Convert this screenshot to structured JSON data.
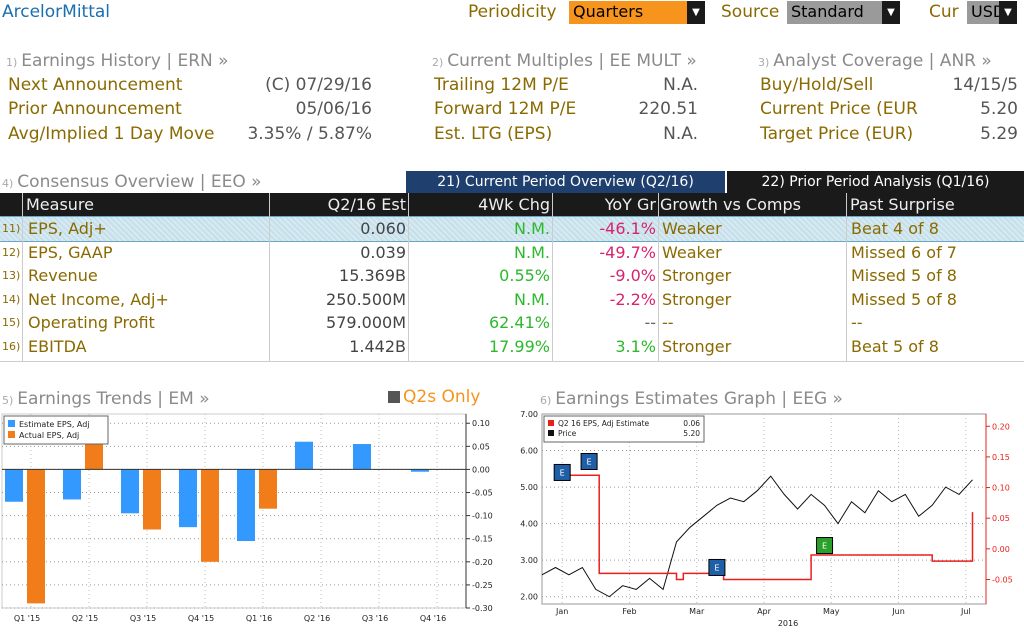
{
  "header": {
    "company": "ArcelorMittal",
    "periodicity_label": "Periodicity",
    "periodicity_value": "Quarters",
    "source_label": "Source",
    "source_value": "Standard",
    "cur_label": "Cur",
    "cur_value": "USD"
  },
  "earnings_history": {
    "num": "1)",
    "title": "Earnings History | ERN »",
    "rows": [
      {
        "label": "Next Announcement",
        "value": "(C)  07/29/16"
      },
      {
        "label": "Prior Announcement",
        "value": "05/06/16"
      },
      {
        "label": "Avg/Implied 1 Day Move",
        "value": "3.35% / 5.87%"
      }
    ]
  },
  "current_multiples": {
    "num": "2)",
    "title": "Current Multiples | EE MULT »",
    "rows": [
      {
        "label": "Trailing 12M P/E",
        "value": "N.A."
      },
      {
        "label": "Forward 12M P/E",
        "value": "220.51"
      },
      {
        "label": "Est. LTG (EPS)",
        "value": "N.A."
      }
    ]
  },
  "analyst_coverage": {
    "num": "3)",
    "title": "Analyst Coverage | ANR »",
    "rows": [
      {
        "label": "Buy/Hold/Sell",
        "value": "14/15/5"
      },
      {
        "label": "Current Price (EUR",
        "value": "5.20"
      },
      {
        "label": "Target Price (EUR)",
        "value": "5.29"
      }
    ]
  },
  "consensus": {
    "num": "4)",
    "title": "Consensus Overview | EEO »",
    "tab_current": "21) Current Period Overview (Q2/16)",
    "tab_prior": "22) Prior Period Analysis (Q1/16)",
    "columns": [
      "Measure",
      "Q2/16 Est",
      "4Wk Chg",
      "YoY Gr",
      "Growth vs Comps",
      "Past Surprise"
    ],
    "rows": [
      {
        "num": "11)",
        "measure": "EPS, Adj+",
        "est": "0.060",
        "wk": "N.M.",
        "yoy": "-46.1%",
        "growth": "Weaker",
        "surprise": "Beat 4 of 8"
      },
      {
        "num": "12)",
        "measure": "EPS, GAAP",
        "est": "0.039",
        "wk": "N.M.",
        "yoy": "-49.7%",
        "growth": "Weaker",
        "surprise": "Missed 6 of 7"
      },
      {
        "num": "13)",
        "measure": "Revenue",
        "est": "15.369B",
        "wk": "0.55%",
        "yoy": "-9.0%",
        "growth": "Stronger",
        "surprise": "Missed 5 of 8"
      },
      {
        "num": "14)",
        "measure": "Net Income, Adj+",
        "est": "250.500M",
        "wk": "N.M.",
        "yoy": "-2.2%",
        "growth": "Stronger",
        "surprise": "Missed 5 of 8"
      },
      {
        "num": "15)",
        "measure": "Operating Profit",
        "est": "579.000M",
        "wk": "62.41%",
        "yoy": "--",
        "growth": "--",
        "surprise": "--"
      },
      {
        "num": "16)",
        "measure": "EBITDA",
        "est": "1.442B",
        "wk": "17.99%",
        "yoy": "3.1%",
        "growth": "Stronger",
        "surprise": "Beat 5 of 8"
      }
    ]
  },
  "earnings_trends": {
    "num": "5)",
    "title": "Earnings Trends | EM »",
    "toggle_label": "Q2s Only"
  },
  "estimates_graph": {
    "num": "6)",
    "title": "Earnings Estimates Graph | EEG »"
  },
  "colors": {
    "estimate": "#3399ff",
    "actual": "#f07d1a",
    "eps_line": "#e8201c",
    "price_line": "#111111",
    "positive": "#2db82d",
    "negative": "#d6246e"
  },
  "chart_data": [
    {
      "type": "bar",
      "categories": [
        "Q1 '15",
        "Q2 '15",
        "Q3 '15",
        "Q4 '15",
        "Q1 '16",
        "Q2 '16",
        "Q3 '16",
        "Q4 '16"
      ],
      "series": [
        {
          "name": "Estimate EPS, Adj",
          "values": [
            -0.07,
            -0.065,
            -0.095,
            -0.125,
            -0.155,
            0.06,
            0.055,
            -0.005
          ]
        },
        {
          "name": "Actual EPS, Adj",
          "values": [
            -0.29,
            0.085,
            -0.13,
            -0.2,
            -0.085,
            null,
            null,
            null
          ]
        }
      ],
      "ylim": [
        -0.3,
        0.12
      ],
      "yticks": [
        0.1,
        0.05,
        0.0,
        -0.05,
        -0.1,
        -0.15,
        -0.2,
        -0.25,
        -0.3
      ],
      "ytick_labels": [
        "0.10",
        "0.05",
        "0.00",
        "-0.05",
        "-0.10",
        "-0.15",
        "-0.20",
        "-0.25",
        "-0.30"
      ],
      "grid": true,
      "legend": "top-left"
    },
    {
      "type": "line",
      "x_labels": [
        "Jan",
        "Feb",
        "Mar",
        "Apr",
        "May",
        "Jun",
        "Jul"
      ],
      "x_sublabel": "2016",
      "legend": "top-left",
      "series": [
        {
          "name": "Price",
          "legend_label": "Price",
          "legend_value": "5.20",
          "axis": "left",
          "x": [
            0,
            0.2,
            0.4,
            0.6,
            0.8,
            1.0,
            1.2,
            1.4,
            1.6,
            1.8,
            2.0,
            2.2,
            2.4,
            2.6,
            2.8,
            3.0,
            3.2,
            3.4,
            3.6,
            3.8,
            4.0,
            4.2,
            4.4,
            4.6,
            4.8,
            5.0,
            5.2,
            5.4,
            5.6,
            5.8,
            6.0,
            6.2,
            6.4
          ],
          "y": [
            2.6,
            2.8,
            2.6,
            2.8,
            2.2,
            2.0,
            2.3,
            2.2,
            2.5,
            2.2,
            3.5,
            3.9,
            4.2,
            4.5,
            4.7,
            4.6,
            4.9,
            5.3,
            4.8,
            4.4,
            4.8,
            4.5,
            4.0,
            4.6,
            4.3,
            4.9,
            4.6,
            4.8,
            4.2,
            4.5,
            5.0,
            4.8,
            5.2
          ]
        },
        {
          "name": "Q2 16 EPS, Adj Estimate",
          "legend_label": "Q2 16 EPS, Adj Estimate",
          "legend_value": "0.06",
          "axis": "right",
          "x": [
            0.3,
            0.8,
            0.85,
            1.5,
            2.0,
            2.1,
            2.6,
            2.7,
            3.2,
            4.0,
            4.5,
            5.8,
            6.3,
            6.4
          ],
          "y": [
            0.12,
            0.12,
            -0.04,
            -0.04,
            -0.05,
            -0.04,
            -0.04,
            -0.05,
            -0.05,
            -0.01,
            -0.01,
            -0.02,
            -0.02,
            0.06
          ]
        }
      ],
      "ylim_left": [
        1.8,
        7.0
      ],
      "yticks_left": [
        "2.00",
        "3.00",
        "4.00",
        "5.00",
        "6.00",
        "7.00"
      ],
      "ylim_right": [
        -0.09,
        0.22
      ],
      "yticks_right": [
        "0.20",
        "0.15",
        "0.10",
        "0.05",
        "0.00",
        "-0.05"
      ],
      "markers": [
        "E",
        "E",
        "E",
        "E"
      ],
      "grid": true
    }
  ]
}
